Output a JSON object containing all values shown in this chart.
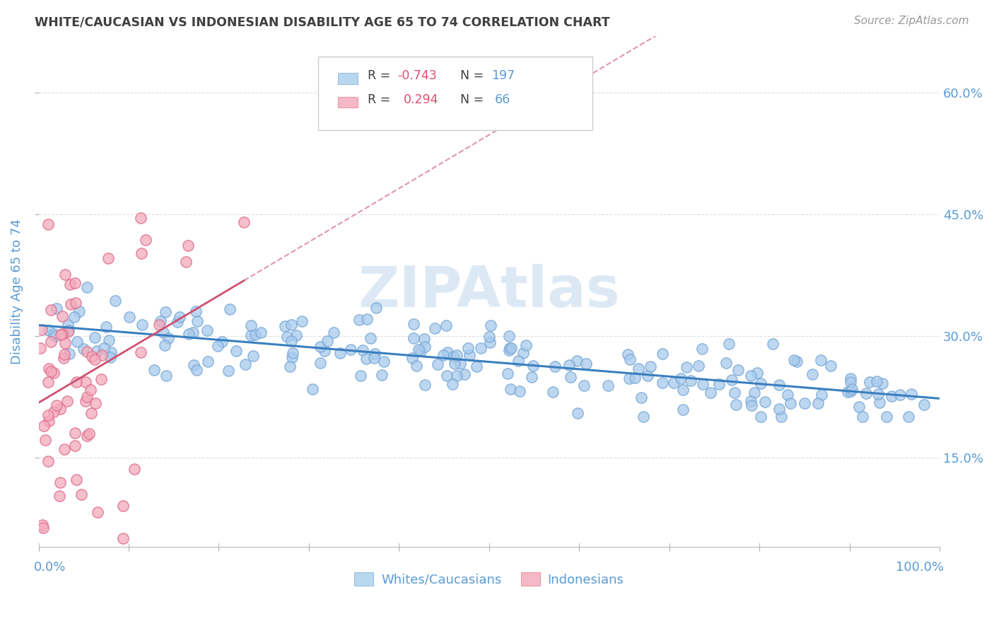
{
  "title": "WHITE/CAUCASIAN VS INDONESIAN DISABILITY AGE 65 TO 74 CORRELATION CHART",
  "source_text": "Source: ZipAtlas.com",
  "ylabel": "Disability Age 65 to 74",
  "right_yticks": [
    0.15,
    0.3,
    0.45,
    0.6
  ],
  "right_yticklabels": [
    "15.0%",
    "30.0%",
    "45.0%",
    "60.0%"
  ],
  "xlim": [
    0.0,
    1.0
  ],
  "ylim": [
    0.04,
    0.67
  ],
  "blue_R": -0.743,
  "blue_N": 197,
  "pink_R": 0.294,
  "pink_N": 66,
  "blue_dot_color": "#A8CAEC",
  "blue_dot_edge": "#7AAAD8",
  "pink_dot_color": "#F4AABB",
  "pink_dot_edge": "#E07090",
  "blue_line_color": "#3A7FBF",
  "pink_line_color": "#D05070",
  "blue_legend_fill": "#B8D8F0",
  "pink_legend_fill": "#F5B8C8",
  "title_color": "#404040",
  "axis_color": "#5B9BD5",
  "watermark_color": "#DCE9F5",
  "background_color": "#FFFFFF",
  "grid_color": "#D8D8D8",
  "legend_label_blue": "Whites/Caucasians",
  "legend_label_pink": "Indonesians",
  "legend_R_color": "#E05070",
  "legend_N_color": "#5B9BD5"
}
